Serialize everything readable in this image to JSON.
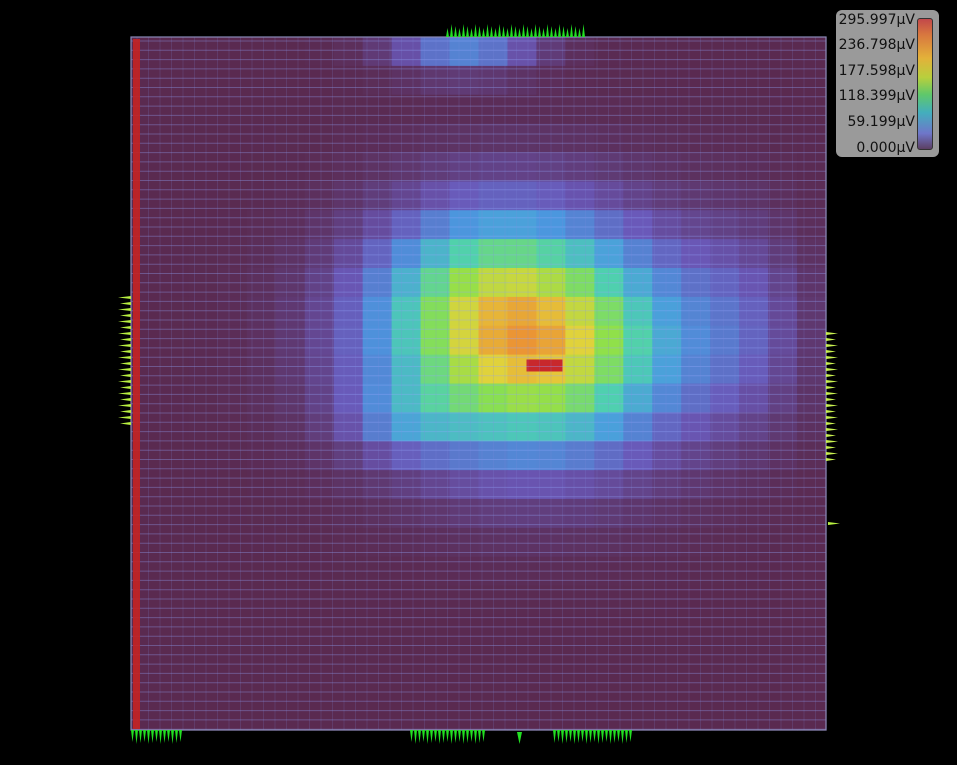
{
  "chart_data": {
    "type": "heatmap",
    "title": "",
    "unit": "µV",
    "value_range": [
      0.0,
      295.997
    ],
    "grid_size": [
      24,
      24
    ],
    "colormap": [
      "#5a2a50",
      "#6a58b8",
      "#4a9ae0",
      "#4ed0b0",
      "#8ee04a",
      "#e3d23a",
      "#ec8a33",
      "#c8282c"
    ],
    "legend": {
      "position": "top-right",
      "labels": [
        "295.997µV",
        "236.798µV",
        "177.598µV",
        "118.399µV",
        "59.199µV",
        "0.000µV"
      ]
    },
    "hotspots": [
      {
        "row": 0.44,
        "col": 0.58,
        "rx": 0.25,
        "ry": 0.19,
        "value": 200
      },
      {
        "row": 0.37,
        "col": 0.5,
        "rx": 0.17,
        "ry": 0.15,
        "value": 55
      },
      {
        "row": 0.46,
        "col": 0.6,
        "rx": 0.12,
        "ry": 0.1,
        "value": 18
      },
      {
        "row": 0.42,
        "col": 0.88,
        "rx": 0.1,
        "ry": 0.17,
        "value": 30
      },
      {
        "row": 0.55,
        "col": 0.4,
        "rx": 0.1,
        "ry": 0.06,
        "value": 40
      },
      {
        "row": 0.02,
        "col": 0.48,
        "rx": 0.12,
        "ry": 0.04,
        "value": 70
      }
    ],
    "peak": {
      "row": 0.474,
      "col": 0.595,
      "value": 295.997
    },
    "background_value": 0
  }
}
